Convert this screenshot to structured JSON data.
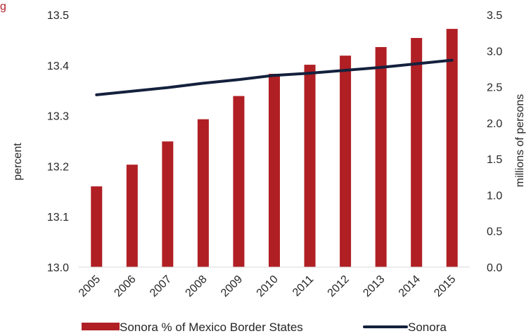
{
  "chart_data": {
    "type": "bar+line",
    "title_fragment": "g",
    "title_fragment_color": "#b3202a",
    "categories": [
      "2005",
      "2006",
      "2007",
      "2008",
      "2009",
      "2010",
      "2011",
      "2012",
      "2013",
      "2014",
      "2015"
    ],
    "series": [
      {
        "name": "Sonora % of Mexico Border States",
        "type": "bar",
        "axis": "left",
        "color": "#b01f24",
        "values": [
          13.16,
          13.203,
          13.249,
          13.293,
          13.339,
          13.383,
          13.401,
          13.419,
          13.436,
          13.454,
          13.472
        ]
      },
      {
        "name": "Sonora",
        "type": "line",
        "axis": "right",
        "color": "#14213d",
        "values": [
          2.39,
          2.44,
          2.49,
          2.55,
          2.6,
          2.66,
          2.69,
          2.73,
          2.77,
          2.82,
          2.87
        ]
      }
    ],
    "y_left": {
      "label": "percent",
      "min": 13.0,
      "max": 13.5,
      "ticks": [
        "13.0",
        "13.1",
        "13.2",
        "13.3",
        "13.4",
        "13.5"
      ]
    },
    "y_right": {
      "label": "millions of persons",
      "min": 0.0,
      "max": 3.5,
      "ticks": [
        "0.0",
        "0.5",
        "1.0",
        "1.5",
        "2.0",
        "2.5",
        "3.0",
        "3.5"
      ]
    },
    "grid": false,
    "legend_position": "bottom"
  }
}
